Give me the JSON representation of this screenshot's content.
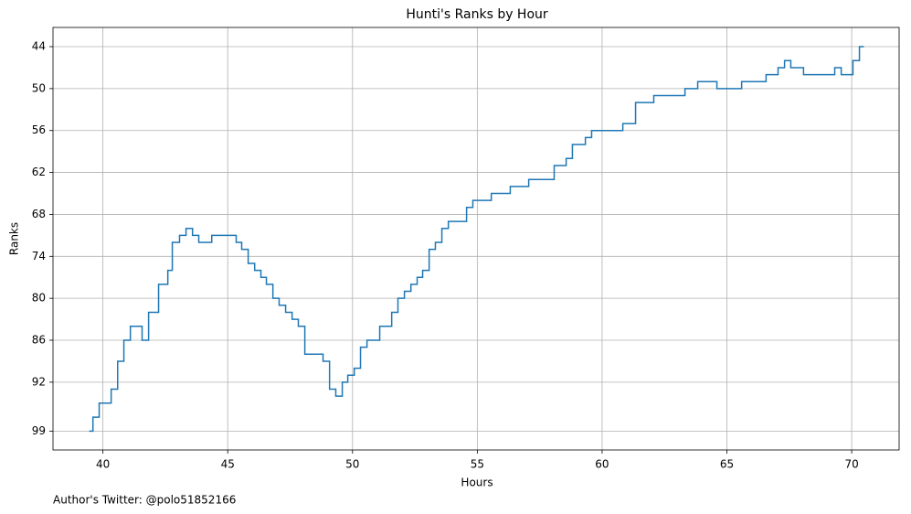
{
  "chart_data": {
    "type": "line",
    "step": "post",
    "title": "Hunti's Ranks by Hour",
    "xlabel": "Hours",
    "ylabel": "Ranks",
    "footer": "Author's Twitter: @polo51852166",
    "x": [
      39.45,
      39.6,
      39.85,
      40.33,
      40.59,
      40.84,
      41.1,
      41.57,
      41.83,
      42.23,
      42.6,
      42.78,
      43.07,
      43.33,
      43.59,
      43.84,
      44.36,
      45.34,
      45.56,
      45.82,
      46.08,
      46.33,
      46.55,
      46.81,
      47.06,
      47.32,
      47.58,
      47.83,
      48.09,
      48.82,
      49.08,
      49.33,
      49.59,
      49.81,
      50.07,
      50.32,
      50.58,
      51.09,
      51.57,
      51.82,
      52.08,
      52.34,
      52.59,
      52.81,
      53.07,
      53.32,
      53.58,
      53.84,
      54.57,
      54.82,
      55.56,
      56.32,
      57.06,
      58.08,
      58.56,
      58.81,
      59.33,
      59.58,
      60.83,
      61.34,
      62.07,
      63.32,
      63.83,
      64.6,
      65.59,
      66.57,
      67.05,
      67.31,
      67.56,
      68.07,
      69.32,
      69.58,
      70.05,
      70.31,
      70.49
    ],
    "values": [
      99,
      97,
      95,
      93,
      89,
      86,
      84,
      86,
      82,
      78,
      76,
      72,
      71,
      70,
      71,
      72,
      71,
      72,
      73,
      75,
      76,
      77,
      78,
      80,
      81,
      82,
      83,
      84,
      88,
      89,
      93,
      94,
      92,
      91,
      90,
      87,
      86,
      84,
      82,
      80,
      79,
      78,
      77,
      76,
      73,
      72,
      70,
      69,
      67,
      66,
      65,
      64,
      63,
      61,
      60,
      58,
      57,
      56,
      55,
      52,
      51,
      50,
      49,
      50,
      49,
      48,
      47,
      46,
      47,
      48,
      47,
      48,
      46,
      44,
      44
    ],
    "color": "#1f77b4",
    "xlim": [
      38,
      71.9
    ],
    "xticks": [
      40,
      45,
      50,
      55,
      60,
      65,
      70
    ],
    "ylim": [
      101.7,
      41.25
    ],
    "yticks": [
      44,
      50,
      56,
      62,
      68,
      74,
      80,
      86,
      92,
      99
    ],
    "grid": true
  }
}
